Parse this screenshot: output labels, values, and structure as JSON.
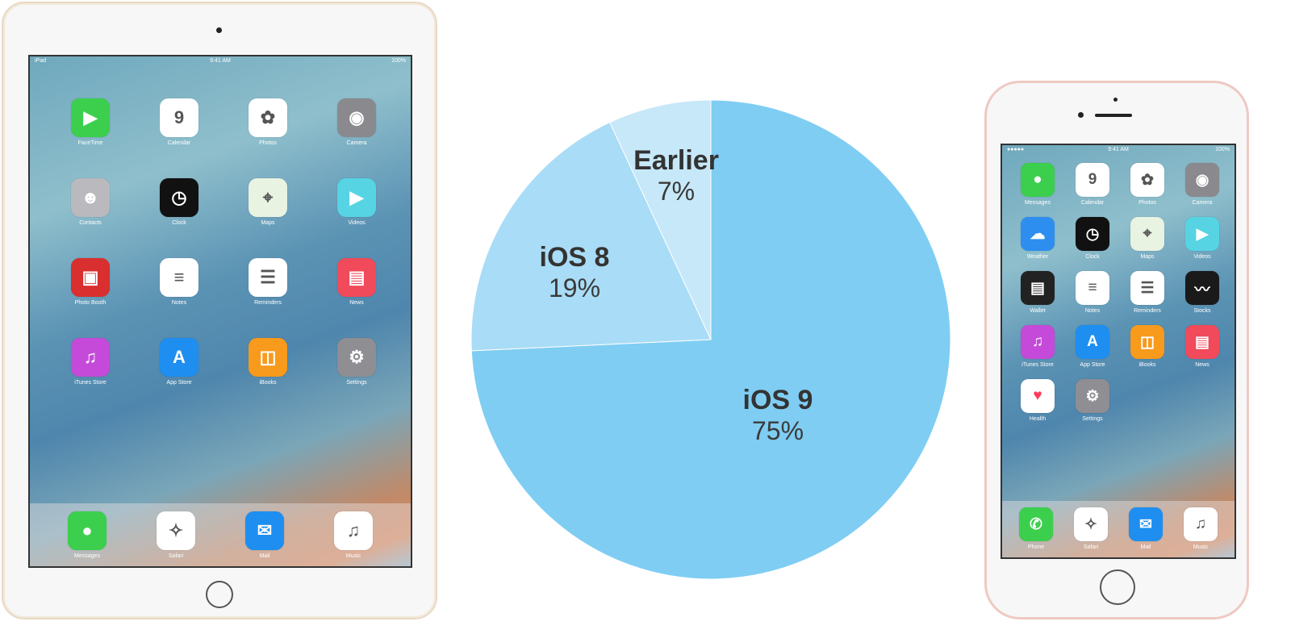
{
  "chart_data": {
    "type": "pie",
    "slices": [
      {
        "name": "iOS 9",
        "value": 75,
        "label": "75%",
        "color": "#7fcdf3"
      },
      {
        "name": "iOS 8",
        "value": 19,
        "label": "19%",
        "color": "#a9dcf6"
      },
      {
        "name": "Earlier",
        "value": 7,
        "label": "7%",
        "color": "#c6e8f8"
      }
    ],
    "start": "top",
    "direction": "clockwise"
  },
  "ipad": {
    "status": {
      "carrier": "iPad",
      "time": "9:41 AM",
      "battery": "100%"
    },
    "apps": [
      {
        "label": "FaceTime",
        "color": "#3ccf4e",
        "glyph": "▶"
      },
      {
        "label": "Calendar",
        "color": "#ffffff",
        "glyph": "9"
      },
      {
        "label": "Photos",
        "color": "#ffffff",
        "glyph": "✿"
      },
      {
        "label": "Camera",
        "color": "#8a8a8e",
        "glyph": "◉"
      },
      {
        "label": "Contacts",
        "color": "#b9b9be",
        "glyph": "☻"
      },
      {
        "label": "Clock",
        "color": "#111111",
        "glyph": "◷"
      },
      {
        "label": "Maps",
        "color": "#e9f3e2",
        "glyph": "⌖"
      },
      {
        "label": "Videos",
        "color": "#56d4e3",
        "glyph": "▶"
      },
      {
        "label": "Photo Booth",
        "color": "#d92f2f",
        "glyph": "▣"
      },
      {
        "label": "Notes",
        "color": "#ffffff",
        "glyph": "≡"
      },
      {
        "label": "Reminders",
        "color": "#ffffff",
        "glyph": "☰"
      },
      {
        "label": "News",
        "color": "#f04a5b",
        "glyph": "▤"
      },
      {
        "label": "iTunes Store",
        "color": "#c54ad9",
        "glyph": "♫"
      },
      {
        "label": "App Store",
        "color": "#1e8ff0",
        "glyph": "A"
      },
      {
        "label": "iBooks",
        "color": "#f89a1c",
        "glyph": "◫"
      },
      {
        "label": "Settings",
        "color": "#8e8e93",
        "glyph": "⚙"
      }
    ],
    "dock": [
      {
        "label": "Messages",
        "color": "#3ccf4e",
        "glyph": "●"
      },
      {
        "label": "Safari",
        "color": "#ffffff",
        "glyph": "✧"
      },
      {
        "label": "Mail",
        "color": "#1e8ff0",
        "glyph": "✉"
      },
      {
        "label": "Music",
        "color": "#ffffff",
        "glyph": "♫"
      }
    ]
  },
  "iphone": {
    "status": {
      "carrier": "●●●●●",
      "time": "9:41 AM",
      "battery": "100%"
    },
    "apps": [
      {
        "label": "Messages",
        "color": "#3ccf4e",
        "glyph": "●"
      },
      {
        "label": "Calendar",
        "color": "#ffffff",
        "glyph": "9"
      },
      {
        "label": "Photos",
        "color": "#ffffff",
        "glyph": "✿"
      },
      {
        "label": "Camera",
        "color": "#8a8a8e",
        "glyph": "◉"
      },
      {
        "label": "Weather",
        "color": "#2d8ef0",
        "glyph": "☁"
      },
      {
        "label": "Clock",
        "color": "#111111",
        "glyph": "◷"
      },
      {
        "label": "Maps",
        "color": "#e9f3e2",
        "glyph": "⌖"
      },
      {
        "label": "Videos",
        "color": "#56d4e3",
        "glyph": "▶"
      },
      {
        "label": "Wallet",
        "color": "#222222",
        "glyph": "▤"
      },
      {
        "label": "Notes",
        "color": "#ffffff",
        "glyph": "≡"
      },
      {
        "label": "Reminders",
        "color": "#ffffff",
        "glyph": "☰"
      },
      {
        "label": "Stocks",
        "color": "#1a1a1a",
        "glyph": "〰"
      },
      {
        "label": "iTunes Store",
        "color": "#c54ad9",
        "glyph": "♫"
      },
      {
        "label": "App Store",
        "color": "#1e8ff0",
        "glyph": "A"
      },
      {
        "label": "iBooks",
        "color": "#f89a1c",
        "glyph": "◫"
      },
      {
        "label": "News",
        "color": "#f04a5b",
        "glyph": "▤"
      },
      {
        "label": "Health",
        "color": "#ffffff",
        "glyph": "♥"
      },
      {
        "label": "Settings",
        "color": "#8e8e93",
        "glyph": "⚙"
      }
    ],
    "dock": [
      {
        "label": "Phone",
        "color": "#3ccf4e",
        "glyph": "✆"
      },
      {
        "label": "Safari",
        "color": "#ffffff",
        "glyph": "✧"
      },
      {
        "label": "Mail",
        "color": "#1e8ff0",
        "glyph": "✉"
      },
      {
        "label": "Music",
        "color": "#ffffff",
        "glyph": "♫"
      }
    ]
  }
}
